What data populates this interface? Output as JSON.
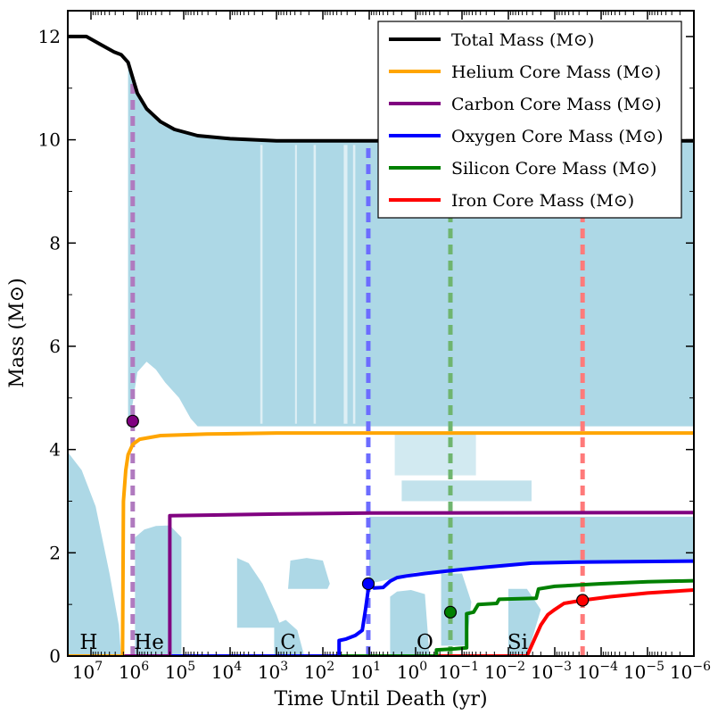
{
  "chart_data": {
    "type": "line",
    "title": "",
    "xlabel": "Time Until Death (yr)",
    "ylabel": "Mass (M⊙)",
    "xscale": "log (reversed)",
    "xlim_log10_yr": [
      7.5,
      -6
    ],
    "ylim": [
      0,
      12.5
    ],
    "y_ticks": [
      0,
      2,
      4,
      6,
      8,
      10,
      12
    ],
    "x_ticks": [
      {
        "exp": 7,
        "label": "10",
        "sup": "7"
      },
      {
        "exp": 6,
        "label": "10",
        "sup": "6"
      },
      {
        "exp": 5,
        "label": "10",
        "sup": "5"
      },
      {
        "exp": 4,
        "label": "10",
        "sup": "4"
      },
      {
        "exp": 3,
        "label": "10",
        "sup": "3"
      },
      {
        "exp": 2,
        "label": "10",
        "sup": "2"
      },
      {
        "exp": 1,
        "label": "10",
        "sup": "1"
      },
      {
        "exp": 0,
        "label": "10",
        "sup": "0"
      },
      {
        "exp": -1,
        "label": "10",
        "sup": "−1"
      },
      {
        "exp": -2,
        "label": "10",
        "sup": "−2"
      },
      {
        "exp": -3,
        "label": "10",
        "sup": "−3"
      },
      {
        "exp": -4,
        "label": "10",
        "sup": "−4"
      },
      {
        "exp": -5,
        "label": "10",
        "sup": "−5"
      },
      {
        "exp": -6,
        "label": "10",
        "sup": "−6"
      }
    ],
    "phase_labels": [
      {
        "text": "H",
        "log_t": 7.05
      },
      {
        "text": "He",
        "log_t": 5.75
      },
      {
        "text": "C",
        "log_t": 2.75
      },
      {
        "text": "O",
        "log_t": -0.2
      },
      {
        "text": "Si",
        "log_t": -2.2
      }
    ],
    "series": [
      {
        "name": "Total Mass (M⊙)",
        "color": "#000000",
        "points": [
          [
            7.5,
            12.0
          ],
          [
            7.1,
            12.0
          ],
          [
            6.8,
            11.85
          ],
          [
            6.5,
            11.7
          ],
          [
            6.35,
            11.65
          ],
          [
            6.2,
            11.5
          ],
          [
            6.1,
            11.2
          ],
          [
            6.0,
            10.9
          ],
          [
            5.8,
            10.6
          ],
          [
            5.5,
            10.35
          ],
          [
            5.2,
            10.2
          ],
          [
            4.7,
            10.08
          ],
          [
            4.0,
            10.02
          ],
          [
            3.0,
            9.98
          ],
          [
            1.0,
            9.98
          ],
          [
            -6,
            9.98
          ]
        ]
      },
      {
        "name": "Helium Core Mass (M⊙)",
        "color": "#FFA500",
        "points": [
          [
            7.5,
            0
          ],
          [
            6.32,
            0
          ],
          [
            6.3,
            3.0
          ],
          [
            6.25,
            3.6
          ],
          [
            6.2,
            3.9
          ],
          [
            6.1,
            4.1
          ],
          [
            5.95,
            4.2
          ],
          [
            5.5,
            4.27
          ],
          [
            4.5,
            4.3
          ],
          [
            3.0,
            4.32
          ],
          [
            -6,
            4.32
          ]
        ]
      },
      {
        "name": "Carbon Core Mass (M⊙)",
        "color": "#800080",
        "points": [
          [
            7.5,
            0
          ],
          [
            5.3,
            0
          ],
          [
            5.3,
            2.72
          ],
          [
            4.5,
            2.73
          ],
          [
            3.0,
            2.75
          ],
          [
            1.0,
            2.77
          ],
          [
            -6,
            2.78
          ]
        ]
      },
      {
        "name": "Oxygen Core Mass (M⊙)",
        "color": "#0000FF",
        "points": [
          [
            7.5,
            0
          ],
          [
            1.65,
            0
          ],
          [
            1.65,
            0.3
          ],
          [
            1.5,
            0.33
          ],
          [
            1.3,
            0.4
          ],
          [
            1.15,
            0.5
          ],
          [
            1.08,
            0.9
          ],
          [
            1.02,
            1.3
          ],
          [
            0.95,
            1.38
          ],
          [
            0.9,
            1.32
          ],
          [
            0.7,
            1.33
          ],
          [
            0.55,
            1.45
          ],
          [
            0.4,
            1.52
          ],
          [
            0.2,
            1.55
          ],
          [
            -0.2,
            1.6
          ],
          [
            -0.7,
            1.65
          ],
          [
            -1.5,
            1.72
          ],
          [
            -2.5,
            1.8
          ],
          [
            -3.5,
            1.82
          ],
          [
            -6,
            1.84
          ]
        ]
      },
      {
        "name": "Silicon Core Mass (M⊙)",
        "color": "#008000",
        "points": [
          [
            7.5,
            0
          ],
          [
            -0.45,
            0
          ],
          [
            -0.45,
            0.12
          ],
          [
            -0.85,
            0.14
          ],
          [
            -1.1,
            0.16
          ],
          [
            -1.1,
            0.82
          ],
          [
            -1.25,
            0.85
          ],
          [
            -1.35,
            1.0
          ],
          [
            -1.75,
            1.02
          ],
          [
            -1.8,
            1.1
          ],
          [
            -2.6,
            1.12
          ],
          [
            -2.65,
            1.3
          ],
          [
            -3.0,
            1.35
          ],
          [
            -4.0,
            1.4
          ],
          [
            -5.0,
            1.44
          ],
          [
            -6,
            1.46
          ]
        ]
      },
      {
        "name": "Iron Core Mass (M⊙)",
        "color": "#FF0000",
        "points": [
          [
            7.5,
            0
          ],
          [
            -2.4,
            0
          ],
          [
            -2.55,
            0.3
          ],
          [
            -2.7,
            0.6
          ],
          [
            -2.85,
            0.8
          ],
          [
            -3.0,
            0.9
          ],
          [
            -3.2,
            1.02
          ],
          [
            -3.6,
            1.08
          ],
          [
            -4.2,
            1.15
          ],
          [
            -5.0,
            1.22
          ],
          [
            -6,
            1.28
          ]
        ]
      }
    ],
    "markers": [
      {
        "series": "Carbon Core Mass (M⊙)",
        "log_t": 6.1,
        "y": 4.55,
        "color": "#800080"
      },
      {
        "series": "Oxygen Core Mass (M⊙)",
        "log_t": 1.02,
        "y": 1.4,
        "color": "#0000FF"
      },
      {
        "series": "Silicon Core Mass (M⊙)",
        "log_t": -0.75,
        "y": 0.85,
        "color": "#008000"
      },
      {
        "series": "Iron Core Mass (M⊙)",
        "log_t": -3.6,
        "y": 1.08,
        "color": "#FF0000"
      }
    ],
    "vlines": [
      {
        "log_t": 6.1,
        "color": "#B07ABF",
        "y_top": 11.2
      },
      {
        "log_t": 1.02,
        "color": "#6C6CFF",
        "y_top": 10.0
      },
      {
        "log_t": -0.75,
        "color": "#6FB56F",
        "y_top": 8.5
      },
      {
        "log_t": -3.6,
        "color": "#FF7A7A",
        "y_top": 8.5
      }
    ],
    "legend": {
      "position": "top-right"
    },
    "convection_color": "#ADD8E6"
  }
}
